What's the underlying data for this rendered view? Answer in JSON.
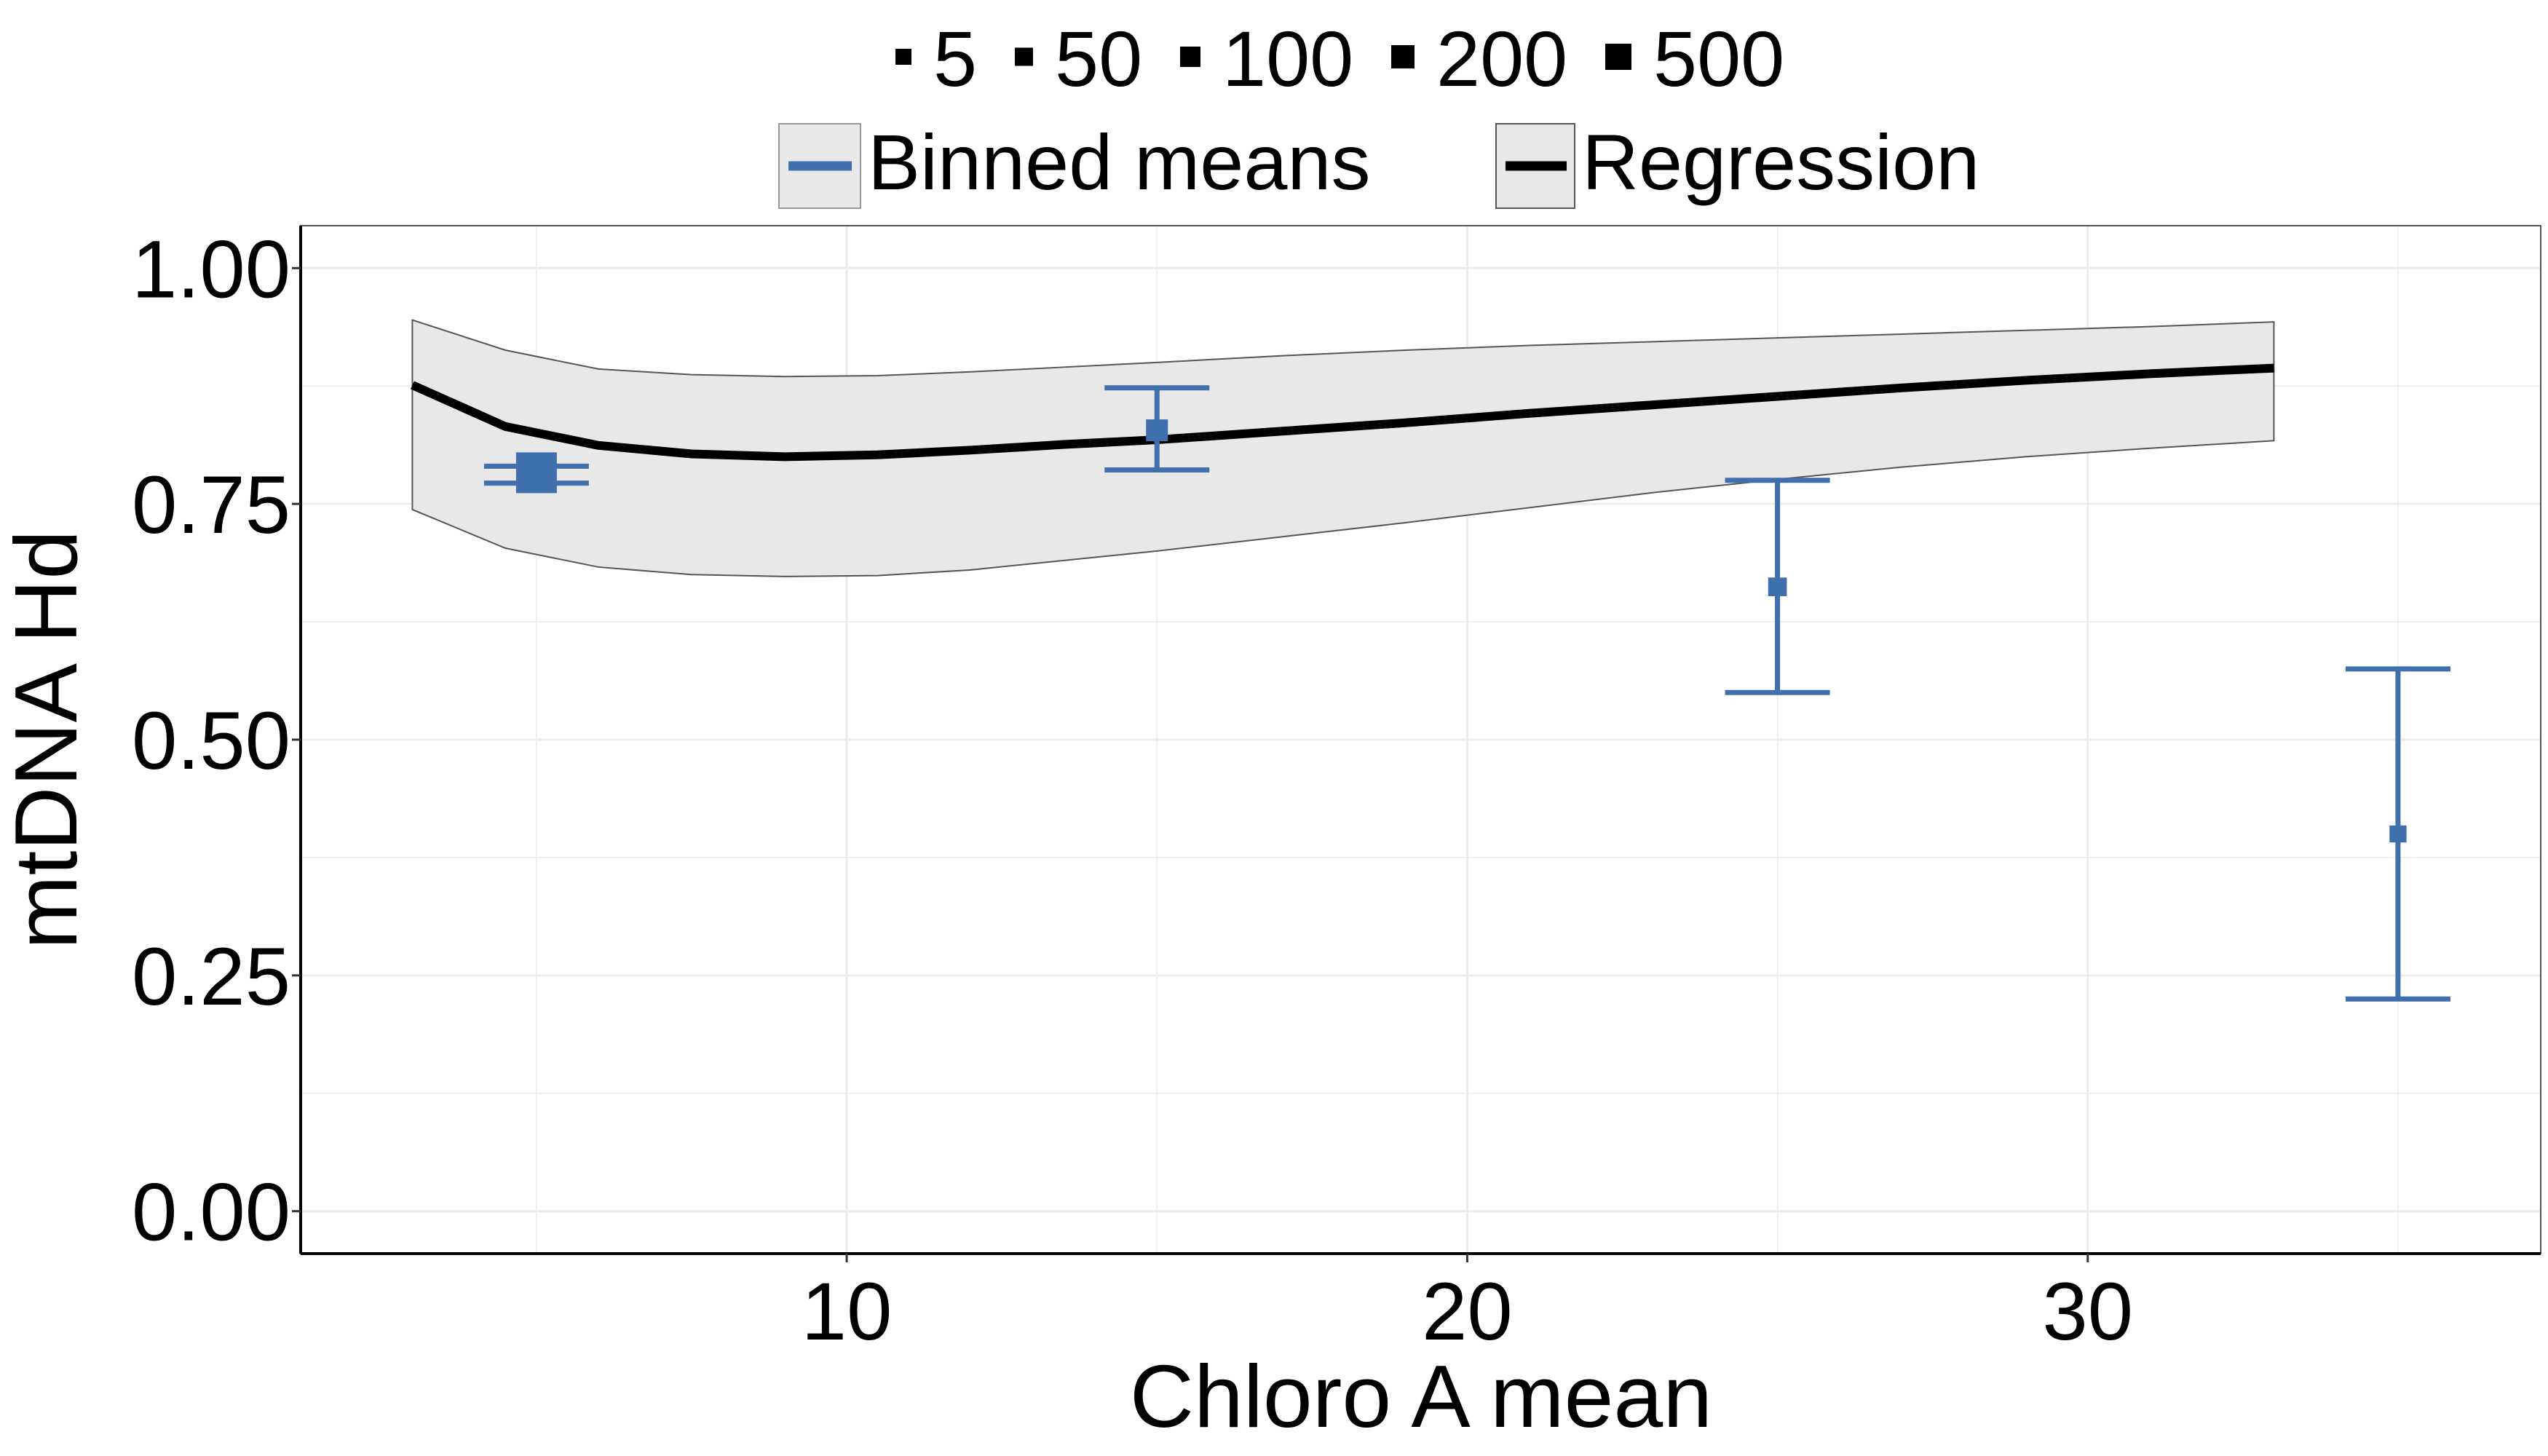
{
  "chart_data": {
    "type": "scatter",
    "title": "",
    "xlabel": "Chloro A mean",
    "ylabel": "mtDNA Hd",
    "xlim": [
      1.2,
      37.3
    ],
    "ylim": [
      -0.045,
      1.045
    ],
    "x_ticks": [
      10,
      20,
      30
    ],
    "x_tick_labels": [
      "10",
      "20",
      "30"
    ],
    "y_ticks": [
      0,
      0.25,
      0.5,
      0.75,
      1.0
    ],
    "y_tick_labels": [
      "0.00",
      "0.25",
      "0.50",
      "0.75",
      "1.00"
    ],
    "grid": true,
    "legend_position": "top",
    "size_legend": {
      "values": [
        5,
        50,
        100,
        200,
        500
      ],
      "labels": [
        "5",
        "50",
        "100",
        "200",
        "500"
      ]
    },
    "legend_entries": [
      {
        "label": "Binned means",
        "color": "#3f6fad"
      },
      {
        "label": "Regression",
        "color": "#000000"
      }
    ],
    "series": [
      {
        "name": "Binned means",
        "type": "errorbar-points",
        "color": "#3f6fad",
        "x": [
          5,
          15,
          25,
          35
        ],
        "y": [
          0.783,
          0.828,
          0.662,
          0.4
        ],
        "ymin": [
          0.772,
          0.786,
          0.55,
          0.225
        ],
        "ymax": [
          0.79,
          0.873,
          0.775,
          0.575
        ],
        "n": [
          500,
          50,
          20,
          10
        ]
      },
      {
        "name": "Regression",
        "type": "line",
        "color": "#000000",
        "x": [
          3,
          4.5,
          6,
          7.5,
          9,
          10.5,
          12,
          13.5,
          15,
          17,
          19,
          21,
          23,
          25,
          27,
          29,
          31,
          33
        ],
        "y": [
          0.876,
          0.832,
          0.812,
          0.803,
          0.8,
          0.802,
          0.807,
          0.813,
          0.818,
          0.827,
          0.836,
          0.846,
          0.855,
          0.864,
          0.873,
          0.881,
          0.888,
          0.894
        ],
        "ci_low": [
          0.744,
          0.703,
          0.683,
          0.675,
          0.673,
          0.674,
          0.68,
          0.69,
          0.7,
          0.715,
          0.73,
          0.746,
          0.762,
          0.776,
          0.789,
          0.8,
          0.809,
          0.817
        ],
        "ci_high": [
          0.945,
          0.913,
          0.893,
          0.887,
          0.885,
          0.886,
          0.89,
          0.895,
          0.9,
          0.907,
          0.913,
          0.918,
          0.922,
          0.926,
          0.93,
          0.934,
          0.938,
          0.943
        ]
      }
    ]
  },
  "colors": {
    "accent": "#3f6fad",
    "ribbon_fill": "#e8e8e8",
    "ribbon_stroke": "#555555",
    "grid": "#ececec"
  }
}
